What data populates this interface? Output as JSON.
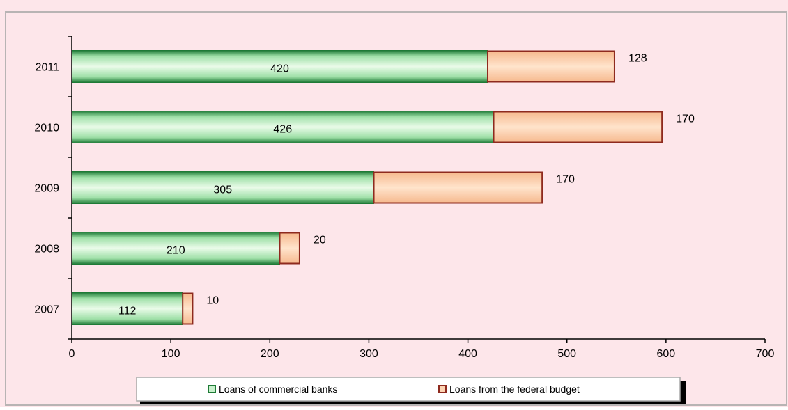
{
  "colors": {
    "background": "#fde6ea",
    "frame": "#b8b4b4",
    "series_1_fill": "#c8f0cc",
    "series_1_edge": "#1e7a36",
    "series_2_fill": "#fcd3b2",
    "series_2_edge": "#8e2a1e",
    "axis": "#000000"
  },
  "chart_data": {
    "type": "bar",
    "orientation": "horizontal",
    "stacked": true,
    "categories": [
      "2011",
      "2010",
      "2009",
      "2008",
      "2007"
    ],
    "series": [
      {
        "name": "Loans of commercial banks",
        "values": [
          420,
          426,
          305,
          210,
          112
        ]
      },
      {
        "name": "Loans from the federal budget",
        "values": [
          128,
          170,
          170,
          20,
          10
        ]
      }
    ],
    "x_ticks": [
      "0",
      "100",
      "200",
      "300",
      "400",
      "500",
      "600",
      "700"
    ],
    "xlim": [
      0,
      700
    ],
    "legend_position": "bottom-center",
    "grid": false
  }
}
